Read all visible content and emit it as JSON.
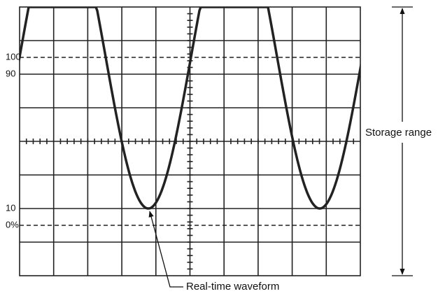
{
  "scale_labels": {
    "top": "100",
    "upper": "90",
    "lower": "10",
    "bottom": "0%"
  },
  "storage_range": "Storage range",
  "waveform_label": "Real-time waveform"
}
